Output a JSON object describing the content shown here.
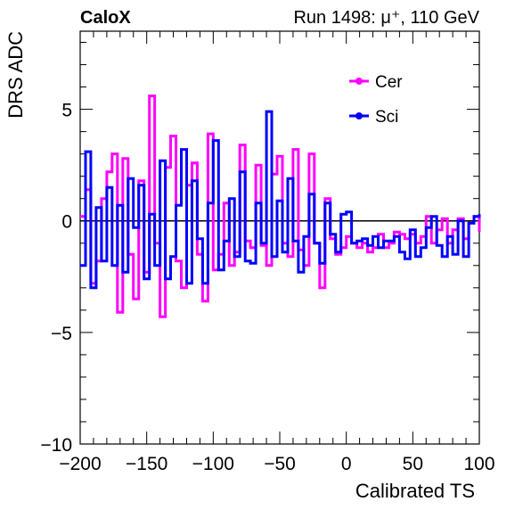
{
  "header": {
    "experiment": "CaloX",
    "run": "Run 1498:   μ⁺, 110 GeV"
  },
  "chart_data": {
    "type": "line",
    "title": "",
    "xlabel": "Calibrated TS",
    "ylabel": "DRS ADC",
    "xlim": [
      -200,
      100
    ],
    "ylim": [
      -10,
      8.5
    ],
    "xticks": [
      -200,
      -150,
      -100,
      -50,
      0,
      50,
      100
    ],
    "xtick_labels": [
      "−200",
      "−150",
      "−100",
      "−50",
      "0",
      "50",
      "100"
    ],
    "yticks": [
      -10,
      -5,
      0,
      5
    ],
    "ytick_labels": [
      "−10",
      "−5",
      "0",
      "5"
    ],
    "grid": false,
    "legend_position": "top-right",
    "reference_line": 0,
    "series": [
      {
        "name": "Cer",
        "color": "#ff00ff",
        "x": [
          -200,
          -196,
          -192,
          -188,
          -184,
          -180,
          -176,
          -172,
          -168,
          -164,
          -160,
          -156,
          -152,
          -148,
          -144,
          -140,
          -136,
          -132,
          -128,
          -124,
          -120,
          -116,
          -112,
          -108,
          -104,
          -100,
          -96,
          -92,
          -88,
          -84,
          -80,
          -76,
          -72,
          -68,
          -64,
          -60,
          -56,
          -52,
          -48,
          -44,
          -40,
          -36,
          -32,
          -28,
          -24,
          -20,
          -16,
          -12,
          -8,
          -4,
          0,
          4,
          8,
          12,
          16,
          20,
          24,
          28,
          32,
          36,
          40,
          44,
          48,
          52,
          56,
          60,
          64,
          68,
          72,
          76,
          80,
          84,
          88,
          92,
          96,
          100
        ],
        "y": [
          0.2,
          1.4,
          -2.8,
          -1.8,
          1.0,
          2.2,
          3.0,
          -4.1,
          2.8,
          -1.5,
          -3.5,
          1.8,
          -2.3,
          5.6,
          -1.0,
          -4.3,
          2.4,
          3.8,
          -1.8,
          -3.0,
          1.6,
          2.6,
          -1.5,
          -3.6,
          3.9,
          -2.2,
          -1.5,
          0.8,
          -2.0,
          -1.4,
          3.4,
          -0.9,
          -1.2,
          2.5,
          -1.1,
          -2.0,
          2.1,
          2.9,
          -1.0,
          -1.6,
          3.2,
          -1.3,
          -2.0,
          3.0,
          -1.0,
          -3.0,
          1.0,
          -0.8,
          -1.5,
          -1.2,
          -0.7,
          -1.0,
          -1.2,
          -1.0,
          -1.4,
          -1.2,
          -0.6,
          -1.2,
          -1.0,
          -0.5,
          -0.6,
          -0.8,
          -0.6,
          -1.0,
          -0.7,
          0.2,
          -1.0,
          -0.4,
          0.1,
          -1.0,
          -0.4,
          0.1,
          -0.8,
          -0.1,
          0.2,
          -0.5
        ]
      },
      {
        "name": "Sci",
        "color": "#0000ff",
        "x": [
          -200,
          -196,
          -192,
          -188,
          -184,
          -180,
          -176,
          -172,
          -168,
          -164,
          -160,
          -156,
          -152,
          -148,
          -144,
          -140,
          -136,
          -132,
          -128,
          -124,
          -120,
          -116,
          -112,
          -108,
          -104,
          -100,
          -96,
          -92,
          -88,
          -84,
          -80,
          -76,
          -72,
          -68,
          -64,
          -60,
          -56,
          -52,
          -48,
          -44,
          -40,
          -36,
          -32,
          -28,
          -24,
          -20,
          -16,
          -12,
          -8,
          -4,
          0,
          4,
          8,
          12,
          16,
          20,
          24,
          28,
          32,
          36,
          40,
          44,
          48,
          52,
          56,
          60,
          64,
          68,
          72,
          76,
          80,
          84,
          88,
          92,
          96,
          100
        ],
        "y": [
          -2.0,
          3.1,
          -3.0,
          0.6,
          -1.8,
          1.5,
          -2.0,
          0.7,
          -2.3,
          1.9,
          -0.3,
          1.6,
          -2.6,
          0.3,
          -2.0,
          2.7,
          -2.6,
          -1.6,
          0.7,
          3.2,
          -2.8,
          1.8,
          -0.8,
          -2.8,
          0.8,
          3.6,
          -2.2,
          -0.9,
          1.0,
          -1.6,
          2.2,
          -1.8,
          -1.9,
          0.8,
          -1.0,
          4.9,
          -1.6,
          0.9,
          -1.4,
          1.9,
          -0.9,
          -2.3,
          -0.7,
          1.2,
          -1.0,
          -1.9,
          0.8,
          -0.6,
          -1.4,
          0.3,
          0.4,
          -1.0,
          -0.9,
          -0.8,
          -1.1,
          -0.7,
          -1.2,
          -0.9,
          -0.9,
          -0.7,
          -1.4,
          -1.7,
          -0.4,
          -1.6,
          -1.2,
          -0.3,
          0.2,
          -1.1,
          -1.6,
          -0.7,
          -1.5,
          0.0,
          -1.6,
          -0.1,
          0.2,
          0.3
        ]
      }
    ]
  }
}
